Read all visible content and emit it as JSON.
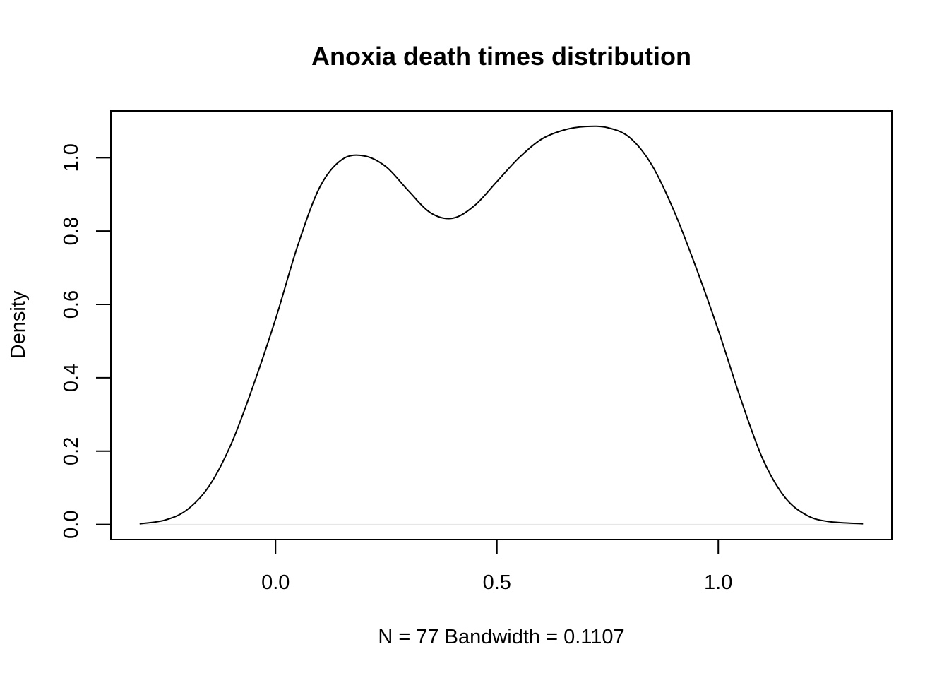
{
  "chart_data": {
    "type": "line",
    "title": "Anoxia death times distribution",
    "xlabel": "N = 77   Bandwidth = 0.1107",
    "ylabel": "Density",
    "xlim": [
      -0.372,
      1.392
    ],
    "ylim": [
      -0.0411,
      1.1277
    ],
    "x_ticks": [
      {
        "value": 0.0,
        "label": "0.0"
      },
      {
        "value": 0.5,
        "label": "0.5"
      },
      {
        "value": 1.0,
        "label": "1.0"
      }
    ],
    "y_ticks": [
      {
        "value": 0.0,
        "label": "0.0"
      },
      {
        "value": 0.2,
        "label": "0.2"
      },
      {
        "value": 0.4,
        "label": "0.4"
      },
      {
        "value": 0.6,
        "label": "0.6"
      },
      {
        "value": 0.8,
        "label": "0.8"
      },
      {
        "value": 1.0,
        "label": "1.0"
      }
    ],
    "grid": false,
    "baseline": 0.0,
    "colors": {
      "line": "#000000",
      "baseline": "#e6e6e6",
      "frame": "#000000"
    },
    "series": [
      {
        "x": [
          -0.307,
          -0.25,
          -0.2,
          -0.15,
          -0.1,
          -0.05,
          0.0,
          0.05,
          0.1,
          0.15,
          0.2,
          0.25,
          0.3,
          0.35,
          0.4,
          0.45,
          0.5,
          0.55,
          0.6,
          0.65,
          0.7,
          0.75,
          0.8,
          0.85,
          0.9,
          0.95,
          1.0,
          1.05,
          1.1,
          1.15,
          1.2,
          1.25,
          1.327
        ],
        "y": [
          0.002,
          0.012,
          0.04,
          0.105,
          0.22,
          0.38,
          0.56,
          0.76,
          0.92,
          0.995,
          1.005,
          0.975,
          0.91,
          0.85,
          0.835,
          0.87,
          0.935,
          1.0,
          1.05,
          1.075,
          1.085,
          1.082,
          1.055,
          0.98,
          0.855,
          0.7,
          0.53,
          0.345,
          0.18,
          0.075,
          0.025,
          0.008,
          0.002
        ]
      }
    ]
  }
}
